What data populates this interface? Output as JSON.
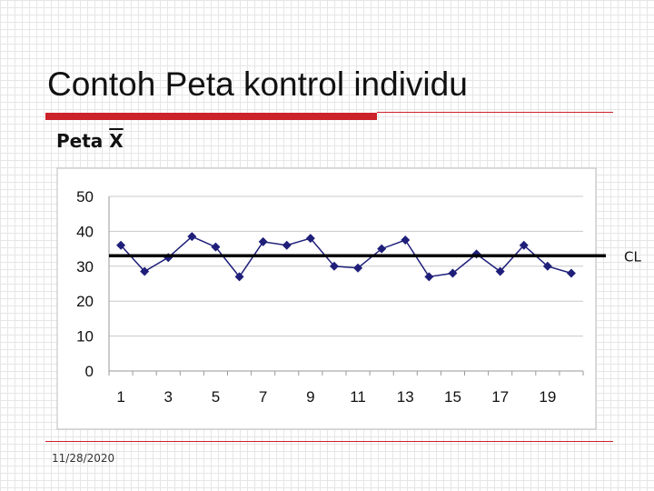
{
  "slide": {
    "title": "Contoh Peta kontrol individu",
    "subtitle_prefix": "Peta ",
    "subtitle_symbol": "X",
    "footer_date": "11/28/2020"
  },
  "colors": {
    "accent": "#cc2229",
    "series": "#1f1f7a",
    "cl_line": "#000000"
  },
  "chart_data": {
    "type": "line",
    "x": [
      1,
      2,
      3,
      4,
      5,
      6,
      7,
      8,
      9,
      10,
      11,
      12,
      13,
      14,
      15,
      16,
      17,
      18,
      19,
      20
    ],
    "x_tick_labels": [
      "1",
      "3",
      "5",
      "7",
      "9",
      "11",
      "13",
      "15",
      "17",
      "19"
    ],
    "y_tick_labels": [
      "0",
      "10",
      "20",
      "30",
      "40",
      "50"
    ],
    "series": [
      {
        "values": [
          36,
          28.5,
          32.5,
          38.5,
          35.5,
          27,
          37,
          36,
          38,
          30,
          29.5,
          35,
          37.5,
          27,
          28,
          33.5,
          28.5,
          36,
          30,
          28
        ]
      }
    ],
    "reference_lines": [
      {
        "label": "CL",
        "value": 33
      }
    ],
    "ylim": [
      0,
      50
    ],
    "grid": true,
    "marker": "diamond"
  }
}
